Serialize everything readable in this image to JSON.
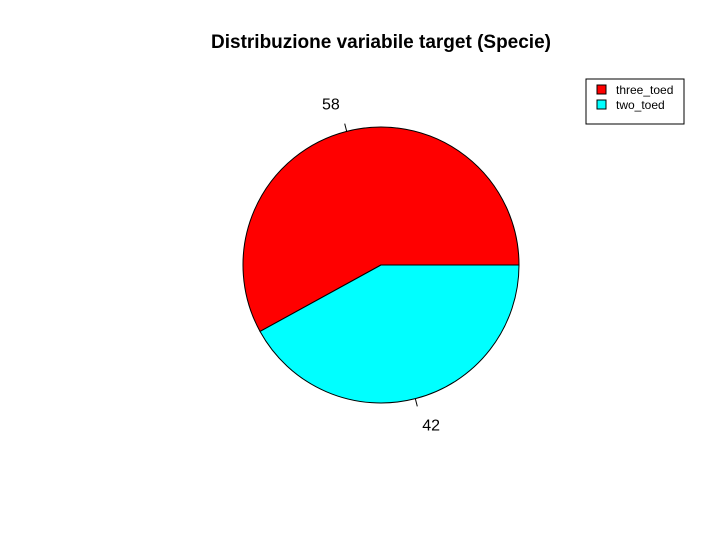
{
  "chart_data": {
    "type": "pie",
    "title": "Distribuzione variabile target (Specie)",
    "slices": [
      {
        "name": "three_toed",
        "value": 58,
        "label": "58",
        "color": "#FF0000"
      },
      {
        "name": "two_toed",
        "value": 42,
        "label": "42",
        "color": "#00FFFF"
      }
    ],
    "start_angle_deg": 0,
    "direction": "counterclockwise",
    "legend": {
      "placement": "top-right",
      "entries": [
        "three_toed",
        "two_toed"
      ]
    },
    "border_color": "#000000"
  }
}
